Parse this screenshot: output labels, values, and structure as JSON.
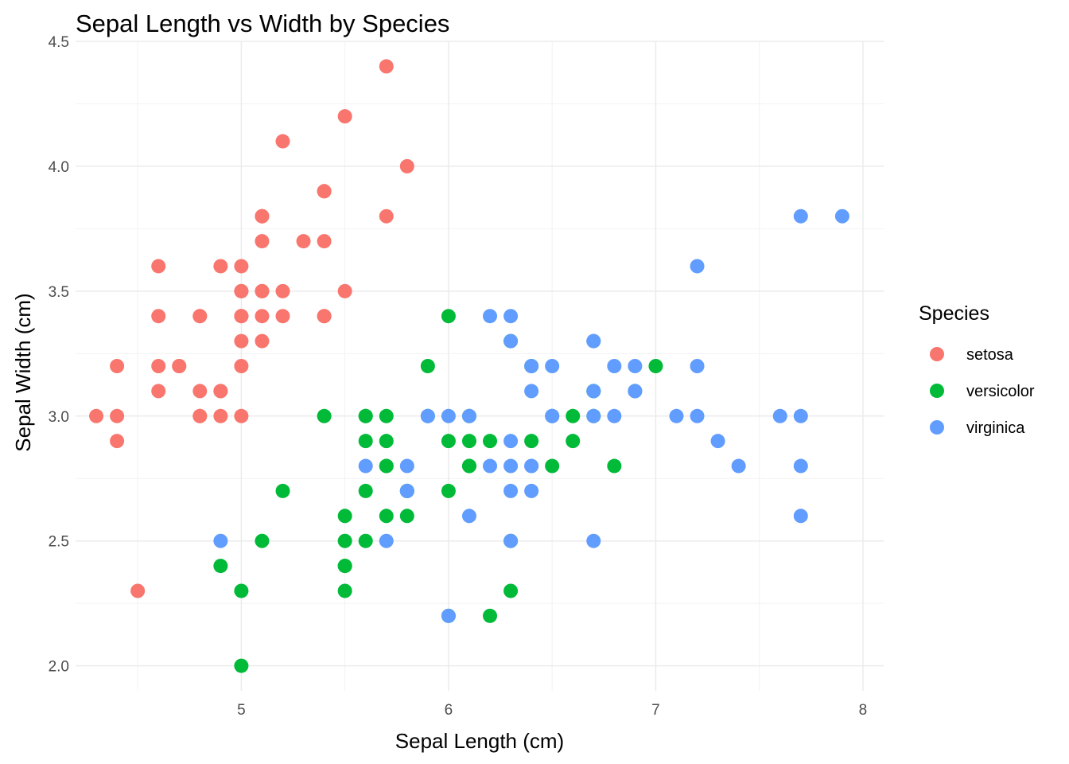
{
  "chart_data": {
    "type": "scatter",
    "title": "Sepal Length vs Width by Species",
    "xlabel": "Sepal Length (cm)",
    "ylabel": "Sepal Width (cm)",
    "xlim": [
      4.2,
      8.1
    ],
    "ylim": [
      1.9,
      4.5
    ],
    "x_ticks": [
      5,
      6,
      7,
      8
    ],
    "x_tick_labels": [
      "5",
      "6",
      "7",
      "8"
    ],
    "y_ticks": [
      2.0,
      2.5,
      3.0,
      3.5,
      4.0,
      4.5
    ],
    "y_tick_labels": [
      "2.0",
      "2.5",
      "3.0",
      "3.5",
      "4.0",
      "4.5"
    ],
    "grid": true,
    "legend": {
      "title": "Species",
      "position": "right"
    },
    "series": [
      {
        "name": "setosa",
        "color": "#F8766D",
        "points": [
          [
            5.1,
            3.5
          ],
          [
            4.9,
            3.0
          ],
          [
            4.7,
            3.2
          ],
          [
            4.6,
            3.1
          ],
          [
            5.0,
            3.6
          ],
          [
            5.4,
            3.9
          ],
          [
            4.6,
            3.4
          ],
          [
            5.0,
            3.4
          ],
          [
            4.4,
            2.9
          ],
          [
            4.9,
            3.1
          ],
          [
            5.4,
            3.7
          ],
          [
            4.8,
            3.4
          ],
          [
            4.8,
            3.0
          ],
          [
            4.3,
            3.0
          ],
          [
            5.8,
            4.0
          ],
          [
            5.7,
            4.4
          ],
          [
            5.4,
            3.9
          ],
          [
            5.1,
            3.5
          ],
          [
            5.7,
            3.8
          ],
          [
            5.1,
            3.8
          ],
          [
            5.4,
            3.4
          ],
          [
            5.1,
            3.7
          ],
          [
            4.6,
            3.6
          ],
          [
            5.1,
            3.3
          ],
          [
            4.8,
            3.4
          ],
          [
            5.0,
            3.0
          ],
          [
            5.0,
            3.4
          ],
          [
            5.2,
            3.5
          ],
          [
            5.2,
            3.4
          ],
          [
            4.7,
            3.2
          ],
          [
            4.8,
            3.1
          ],
          [
            5.4,
            3.4
          ],
          [
            5.2,
            4.1
          ],
          [
            5.5,
            4.2
          ],
          [
            4.9,
            3.1
          ],
          [
            5.0,
            3.2
          ],
          [
            5.5,
            3.5
          ],
          [
            4.9,
            3.6
          ],
          [
            4.4,
            3.0
          ],
          [
            5.1,
            3.4
          ],
          [
            5.0,
            3.5
          ],
          [
            4.5,
            2.3
          ],
          [
            4.4,
            3.2
          ],
          [
            5.0,
            3.5
          ],
          [
            5.1,
            3.8
          ],
          [
            4.8,
            3.0
          ],
          [
            5.1,
            3.8
          ],
          [
            4.6,
            3.2
          ],
          [
            5.3,
            3.7
          ],
          [
            5.0,
            3.3
          ]
        ]
      },
      {
        "name": "versicolor",
        "color": "#00BA38",
        "points": [
          [
            7.0,
            3.2
          ],
          [
            6.4,
            3.2
          ],
          [
            6.9,
            3.1
          ],
          [
            5.5,
            2.3
          ],
          [
            6.5,
            2.8
          ],
          [
            5.7,
            2.8
          ],
          [
            6.3,
            3.3
          ],
          [
            4.9,
            2.4
          ],
          [
            6.6,
            2.9
          ],
          [
            5.2,
            2.7
          ],
          [
            5.0,
            2.0
          ],
          [
            5.9,
            3.0
          ],
          [
            6.0,
            2.2
          ],
          [
            6.1,
            2.9
          ],
          [
            5.6,
            2.9
          ],
          [
            6.7,
            3.1
          ],
          [
            5.6,
            3.0
          ],
          [
            5.8,
            2.7
          ],
          [
            6.2,
            2.2
          ],
          [
            5.6,
            2.5
          ],
          [
            5.9,
            3.2
          ],
          [
            6.1,
            2.8
          ],
          [
            6.3,
            2.5
          ],
          [
            6.1,
            2.8
          ],
          [
            6.4,
            2.9
          ],
          [
            6.6,
            3.0
          ],
          [
            6.8,
            2.8
          ],
          [
            6.7,
            3.0
          ],
          [
            6.0,
            2.9
          ],
          [
            5.7,
            2.6
          ],
          [
            5.5,
            2.4
          ],
          [
            5.5,
            2.4
          ],
          [
            5.8,
            2.7
          ],
          [
            6.0,
            2.7
          ],
          [
            5.4,
            3.0
          ],
          [
            6.0,
            3.4
          ],
          [
            6.7,
            3.1
          ],
          [
            6.3,
            2.3
          ],
          [
            5.6,
            3.0
          ],
          [
            5.5,
            2.5
          ],
          [
            5.5,
            2.6
          ],
          [
            6.1,
            3.0
          ],
          [
            5.8,
            2.6
          ],
          [
            5.0,
            2.3
          ],
          [
            5.6,
            2.7
          ],
          [
            5.7,
            3.0
          ],
          [
            5.7,
            2.9
          ],
          [
            6.2,
            2.9
          ],
          [
            5.1,
            2.5
          ],
          [
            5.7,
            2.8
          ]
        ]
      },
      {
        "name": "virginica",
        "color": "#619CFF",
        "points": [
          [
            6.3,
            3.3
          ],
          [
            5.8,
            2.7
          ],
          [
            7.1,
            3.0
          ],
          [
            6.3,
            2.9
          ],
          [
            6.5,
            3.0
          ],
          [
            7.6,
            3.0
          ],
          [
            4.9,
            2.5
          ],
          [
            7.3,
            2.9
          ],
          [
            6.7,
            2.5
          ],
          [
            7.2,
            3.6
          ],
          [
            6.5,
            3.2
          ],
          [
            6.4,
            2.7
          ],
          [
            6.8,
            3.0
          ],
          [
            5.7,
            2.5
          ],
          [
            5.8,
            2.8
          ],
          [
            6.4,
            3.2
          ],
          [
            6.5,
            3.0
          ],
          [
            7.7,
            3.8
          ],
          [
            7.7,
            2.6
          ],
          [
            6.0,
            2.2
          ],
          [
            6.9,
            3.2
          ],
          [
            5.6,
            2.8
          ],
          [
            7.7,
            2.8
          ],
          [
            6.3,
            2.7
          ],
          [
            6.7,
            3.3
          ],
          [
            7.2,
            3.2
          ],
          [
            6.2,
            2.8
          ],
          [
            6.1,
            3.0
          ],
          [
            6.4,
            2.8
          ],
          [
            7.2,
            3.0
          ],
          [
            7.4,
            2.8
          ],
          [
            7.9,
            3.8
          ],
          [
            6.4,
            2.8
          ],
          [
            6.3,
            2.8
          ],
          [
            6.1,
            2.6
          ],
          [
            7.7,
            3.0
          ],
          [
            6.3,
            3.4
          ],
          [
            6.4,
            3.1
          ],
          [
            6.0,
            3.0
          ],
          [
            6.9,
            3.1
          ],
          [
            6.7,
            3.1
          ],
          [
            6.9,
            3.1
          ],
          [
            5.8,
            2.7
          ],
          [
            6.8,
            3.2
          ],
          [
            6.7,
            3.3
          ],
          [
            6.7,
            3.0
          ],
          [
            6.3,
            2.5
          ],
          [
            6.5,
            3.0
          ],
          [
            6.2,
            3.4
          ],
          [
            5.9,
            3.0
          ]
        ]
      }
    ]
  }
}
